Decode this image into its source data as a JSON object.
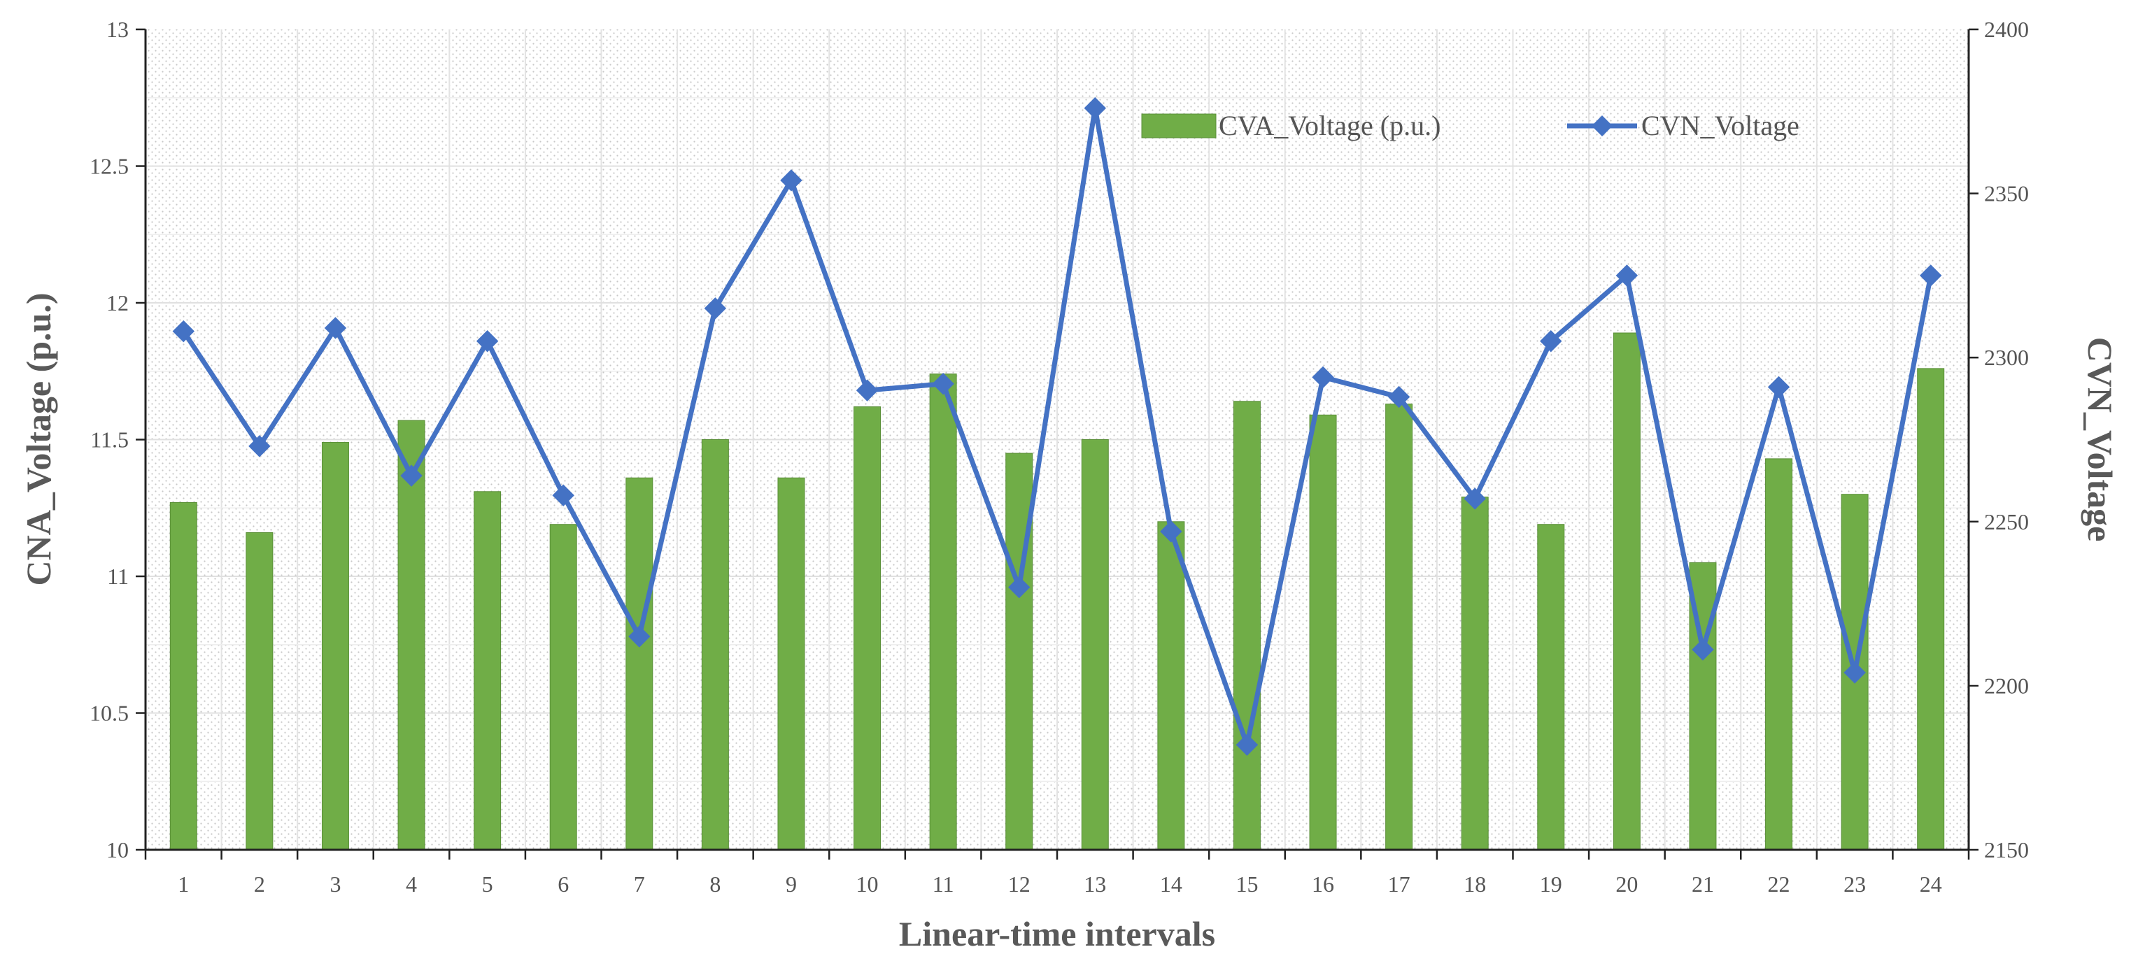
{
  "chart_data": {
    "type": "bar",
    "categories": [
      "1",
      "2",
      "3",
      "4",
      "5",
      "6",
      "7",
      "8",
      "9",
      "10",
      "11",
      "12",
      "13",
      "14",
      "15",
      "16",
      "17",
      "18",
      "19",
      "20",
      "21",
      "22",
      "23",
      "24"
    ],
    "xlabel": "Linear-time intervals",
    "ylabel": "CNA_Voltage (p.u.)",
    "y2label": "CVN_Voltage",
    "ylim": [
      10,
      13
    ],
    "y2lim": [
      2150,
      2400
    ],
    "yticks": [
      "10",
      "10.5",
      "11",
      "11.5",
      "12",
      "12.5",
      "13"
    ],
    "y2ticks": [
      "2150",
      "2200",
      "2250",
      "2300",
      "2350",
      "2400"
    ],
    "grid": true,
    "legend_position": "top-right",
    "series": [
      {
        "name": "CVA_Voltage (p.u.)",
        "type": "bar",
        "axis": "left",
        "color": "#70ad47",
        "values": [
          11.27,
          11.16,
          11.49,
          11.57,
          11.31,
          11.19,
          11.36,
          11.5,
          11.36,
          11.62,
          11.74,
          11.45,
          11.5,
          11.2,
          11.64,
          11.59,
          11.63,
          11.29,
          11.19,
          11.89,
          11.05,
          11.43,
          11.3,
          11.76
        ]
      },
      {
        "name": "CVN_Voltage",
        "type": "line",
        "axis": "right",
        "color": "#4472c4",
        "marker": "diamond",
        "values": [
          2308,
          2273,
          2309,
          2264,
          2305,
          2258,
          2215,
          2315,
          2354,
          2290,
          2292,
          2230,
          2376,
          2247,
          2182,
          2294,
          2288,
          2257,
          2305,
          2325,
          2211,
          2291,
          2204,
          2325
        ]
      }
    ]
  }
}
